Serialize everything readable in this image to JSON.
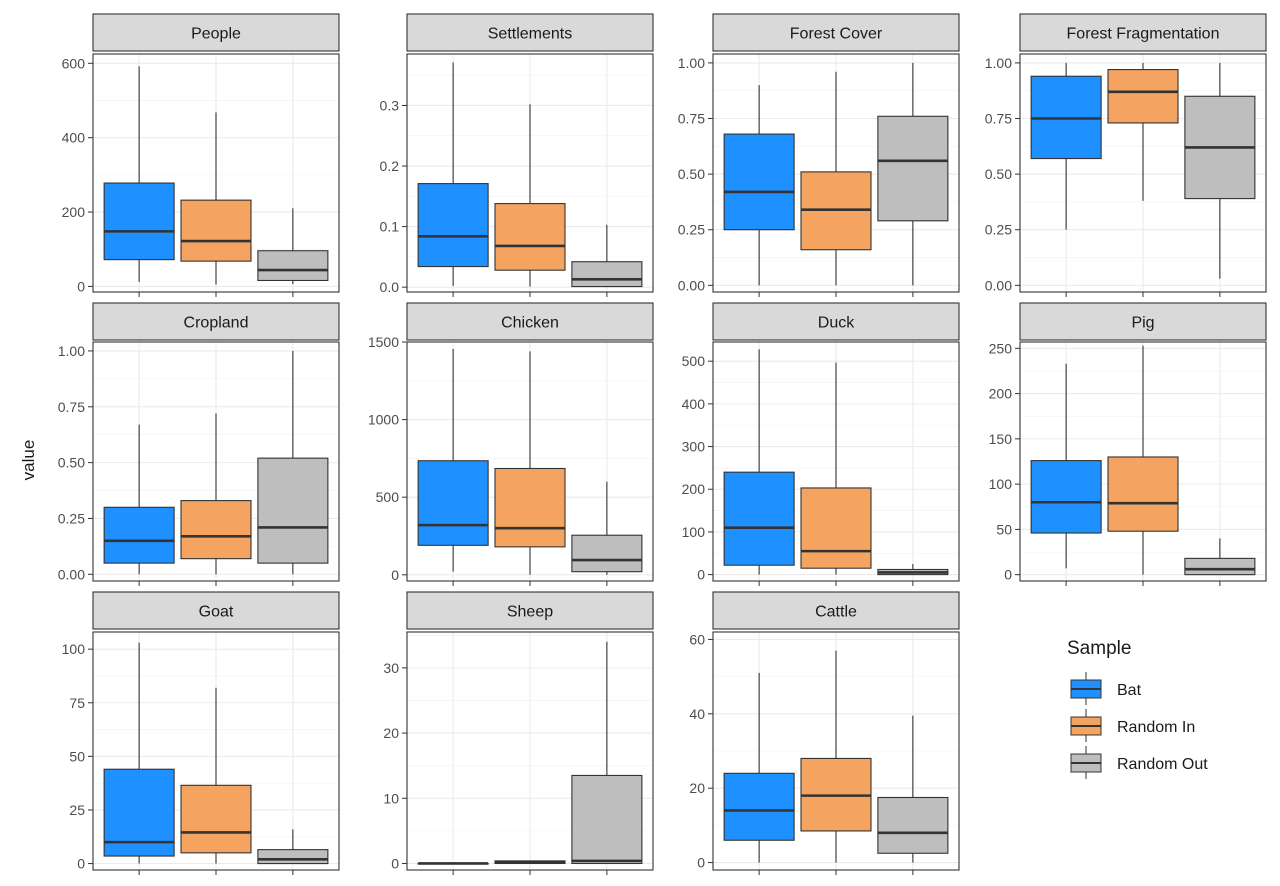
{
  "chart_data": {
    "type": "boxplot",
    "ylabel": "value",
    "legend": {
      "title": "Sample",
      "position": "right",
      "entries": [
        {
          "name": "Bat",
          "color": "#1e90ff"
        },
        {
          "name": "Random In",
          "color": "#f4a460"
        },
        {
          "name": "Random Out",
          "color": "#bebebe"
        }
      ]
    },
    "grid": true,
    "panels": [
      {
        "title": "People",
        "ylim": [
          -15,
          625
        ],
        "ticks": [
          0,
          200,
          400,
          600
        ],
        "tick_labels": [
          "0",
          "200",
          "400",
          "600"
        ],
        "boxes": [
          {
            "group": "Bat",
            "min": 12,
            "q1": 72,
            "median": 148,
            "q3": 278,
            "max": 592
          },
          {
            "group": "Random In",
            "min": 5,
            "q1": 68,
            "median": 122,
            "q3": 232,
            "max": 468
          },
          {
            "group": "Random Out",
            "min": 6,
            "q1": 16,
            "median": 44,
            "q3": 96,
            "max": 210
          }
        ]
      },
      {
        "title": "Settlements",
        "ylim": [
          -0.008,
          0.385
        ],
        "ticks": [
          0,
          0.1,
          0.2,
          0.3
        ],
        "tick_labels": [
          "0.0",
          "0.1",
          "0.2",
          "0.3"
        ],
        "boxes": [
          {
            "group": "Bat",
            "min": 0.002,
            "q1": 0.034,
            "median": 0.084,
            "q3": 0.171,
            "max": 0.371
          },
          {
            "group": "Random In",
            "min": 0.001,
            "q1": 0.028,
            "median": 0.068,
            "q3": 0.138,
            "max": 0.302
          },
          {
            "group": "Random Out",
            "min": 0.0,
            "q1": 0.001,
            "median": 0.013,
            "q3": 0.042,
            "max": 0.103
          }
        ]
      },
      {
        "title": "Forest Cover",
        "ylim": [
          -0.03,
          1.04
        ],
        "ticks": [
          0,
          0.25,
          0.5,
          0.75,
          1.0
        ],
        "tick_labels": [
          "0.00",
          "0.25",
          "0.50",
          "0.75",
          "1.00"
        ],
        "boxes": [
          {
            "group": "Bat",
            "min": 0.0,
            "q1": 0.25,
            "median": 0.42,
            "q3": 0.68,
            "max": 0.9
          },
          {
            "group": "Random In",
            "min": 0.0,
            "q1": 0.16,
            "median": 0.34,
            "q3": 0.51,
            "max": 0.96
          },
          {
            "group": "Random Out",
            "min": 0.0,
            "q1": 0.29,
            "median": 0.56,
            "q3": 0.76,
            "max": 1.0
          }
        ]
      },
      {
        "title": "Forest Fragmentation",
        "ylim": [
          -0.03,
          1.04
        ],
        "ticks": [
          0,
          0.25,
          0.5,
          0.75,
          1.0
        ],
        "tick_labels": [
          "0.00",
          "0.25",
          "0.50",
          "0.75",
          "1.00"
        ],
        "boxes": [
          {
            "group": "Bat",
            "min": 0.25,
            "q1": 0.57,
            "median": 0.75,
            "q3": 0.94,
            "max": 1.0
          },
          {
            "group": "Random In",
            "min": 0.38,
            "q1": 0.73,
            "median": 0.87,
            "q3": 0.97,
            "max": 1.0
          },
          {
            "group": "Random Out",
            "min": 0.03,
            "q1": 0.39,
            "median": 0.62,
            "q3": 0.85,
            "max": 1.0
          }
        ]
      },
      {
        "title": "Cropland",
        "ylim": [
          -0.03,
          1.04
        ],
        "ticks": [
          0,
          0.25,
          0.5,
          0.75,
          1.0
        ],
        "tick_labels": [
          "0.00",
          "0.25",
          "0.50",
          "0.75",
          "1.00"
        ],
        "boxes": [
          {
            "group": "Bat",
            "min": 0.0,
            "q1": 0.05,
            "median": 0.15,
            "q3": 0.3,
            "max": 0.67
          },
          {
            "group": "Random In",
            "min": 0.0,
            "q1": 0.07,
            "median": 0.17,
            "q3": 0.33,
            "max": 0.72
          },
          {
            "group": "Random Out",
            "min": 0.0,
            "q1": 0.05,
            "median": 0.21,
            "q3": 0.52,
            "max": 1.0
          }
        ]
      },
      {
        "title": "Chicken",
        "ylim": [
          -40,
          1500
        ],
        "ticks": [
          0,
          500,
          1000,
          1500
        ],
        "tick_labels": [
          "0",
          "500",
          "1000",
          "1500"
        ],
        "boxes": [
          {
            "group": "Bat",
            "min": 20,
            "q1": 190,
            "median": 320,
            "q3": 735,
            "max": 1455
          },
          {
            "group": "Random In",
            "min": 0,
            "q1": 180,
            "median": 300,
            "q3": 685,
            "max": 1440
          },
          {
            "group": "Random Out",
            "min": 0,
            "q1": 20,
            "median": 95,
            "q3": 255,
            "max": 600
          }
        ]
      },
      {
        "title": "Duck",
        "ylim": [
          -15,
          545
        ],
        "ticks": [
          0,
          100,
          200,
          300,
          400,
          500
        ],
        "tick_labels": [
          "0",
          "100",
          "200",
          "300",
          "400",
          "500"
        ],
        "boxes": [
          {
            "group": "Bat",
            "min": 0,
            "q1": 22,
            "median": 110,
            "q3": 240,
            "max": 528
          },
          {
            "group": "Random In",
            "min": 0,
            "q1": 15,
            "median": 55,
            "q3": 203,
            "max": 497
          },
          {
            "group": "Random Out",
            "min": 0,
            "q1": 0,
            "median": 5,
            "q3": 12,
            "max": 25
          }
        ]
      },
      {
        "title": "Pig",
        "ylim": [
          -7,
          257
        ],
        "ticks": [
          0,
          50,
          100,
          150,
          200,
          250
        ],
        "tick_labels": [
          "0",
          "50",
          "100",
          "150",
          "200",
          "250"
        ],
        "boxes": [
          {
            "group": "Bat",
            "min": 7,
            "q1": 46,
            "median": 80,
            "q3": 126,
            "max": 233
          },
          {
            "group": "Random In",
            "min": 0,
            "q1": 48,
            "median": 79,
            "q3": 130,
            "max": 253
          },
          {
            "group": "Random Out",
            "min": 0,
            "q1": 0,
            "median": 6,
            "q3": 18,
            "max": 40
          }
        ]
      },
      {
        "title": "Goat",
        "ylim": [
          -3,
          108
        ],
        "ticks": [
          0,
          25,
          50,
          75,
          100
        ],
        "tick_labels": [
          "0",
          "25",
          "50",
          "75",
          "100"
        ],
        "boxes": [
          {
            "group": "Bat",
            "min": 0,
            "q1": 3.5,
            "median": 10,
            "q3": 44,
            "max": 103
          },
          {
            "group": "Random In",
            "min": 0,
            "q1": 5,
            "median": 14.5,
            "q3": 36.5,
            "max": 82
          },
          {
            "group": "Random Out",
            "min": 0,
            "q1": 0,
            "median": 2,
            "q3": 6.5,
            "max": 16
          }
        ]
      },
      {
        "title": "Sheep",
        "ylim": [
          -1,
          35.5
        ],
        "ticks": [
          0,
          10,
          20,
          30
        ],
        "tick_labels": [
          "0",
          "10",
          "20",
          "30"
        ],
        "boxes": [
          {
            "group": "Bat",
            "min": 0,
            "q1": 0,
            "median": 0,
            "q3": 0,
            "max": 0
          },
          {
            "group": "Random In",
            "min": 0,
            "q1": 0,
            "median": 0.2,
            "q3": 0.4,
            "max": 0.4
          },
          {
            "group": "Random Out",
            "min": 0,
            "q1": 0,
            "median": 0.4,
            "q3": 13.5,
            "max": 34
          }
        ]
      },
      {
        "title": "Cattle",
        "ylim": [
          -2,
          62
        ],
        "ticks": [
          0,
          20,
          40,
          60
        ],
        "tick_labels": [
          "0",
          "20",
          "40",
          "60"
        ],
        "boxes": [
          {
            "group": "Bat",
            "min": 0,
            "q1": 6,
            "median": 14,
            "q3": 24,
            "max": 51
          },
          {
            "group": "Random In",
            "min": 0,
            "q1": 8.5,
            "median": 18,
            "q3": 28,
            "max": 57
          },
          {
            "group": "Random Out",
            "min": 0,
            "q1": 2.5,
            "median": 8,
            "q3": 17.5,
            "max": 39.5
          }
        ]
      }
    ]
  }
}
